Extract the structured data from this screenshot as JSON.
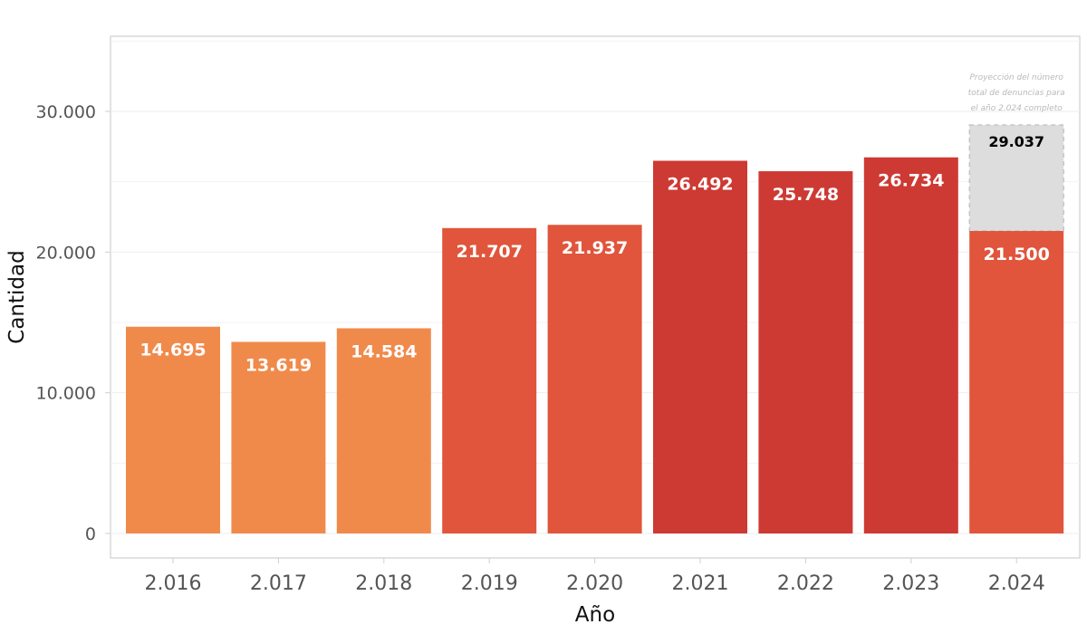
{
  "chart_data": {
    "type": "bar",
    "categories": [
      "2.016",
      "2.017",
      "2.018",
      "2.019",
      "2.020",
      "2.021",
      "2.022",
      "2.023",
      "2.024"
    ],
    "values": [
      14695,
      13619,
      14584,
      21707,
      21937,
      26492,
      25748,
      26734,
      21500
    ],
    "value_labels": [
      "14.695",
      "13.619",
      "14.584",
      "21.707",
      "21.937",
      "26.492",
      "25.748",
      "26.734",
      "21.500"
    ],
    "bar_colors": [
      "#F08A4B",
      "#F08A4B",
      "#F08A4B",
      "#E0553B",
      "#E0553B",
      "#CD3A33",
      "#CD3A33",
      "#CD3A33",
      "#E0553B"
    ],
    "projection": {
      "category": "2.024",
      "value": 29037,
      "value_label": "29.037",
      "fill_color": "#DDDDDD",
      "border_color": "#BBBBBB",
      "annotation_lines": [
        "Proyección del número",
        "total de denuncias para",
        "el año 2.024 completo"
      ]
    },
    "xlabel": "Año",
    "ylabel": "Cantidad",
    "y_ticks": [
      0,
      10000,
      20000,
      30000
    ],
    "y_tick_labels": [
      "0",
      "10.000",
      "20.000",
      "30.000"
    ],
    "ylim": [
      0,
      35000
    ],
    "grid": true
  }
}
